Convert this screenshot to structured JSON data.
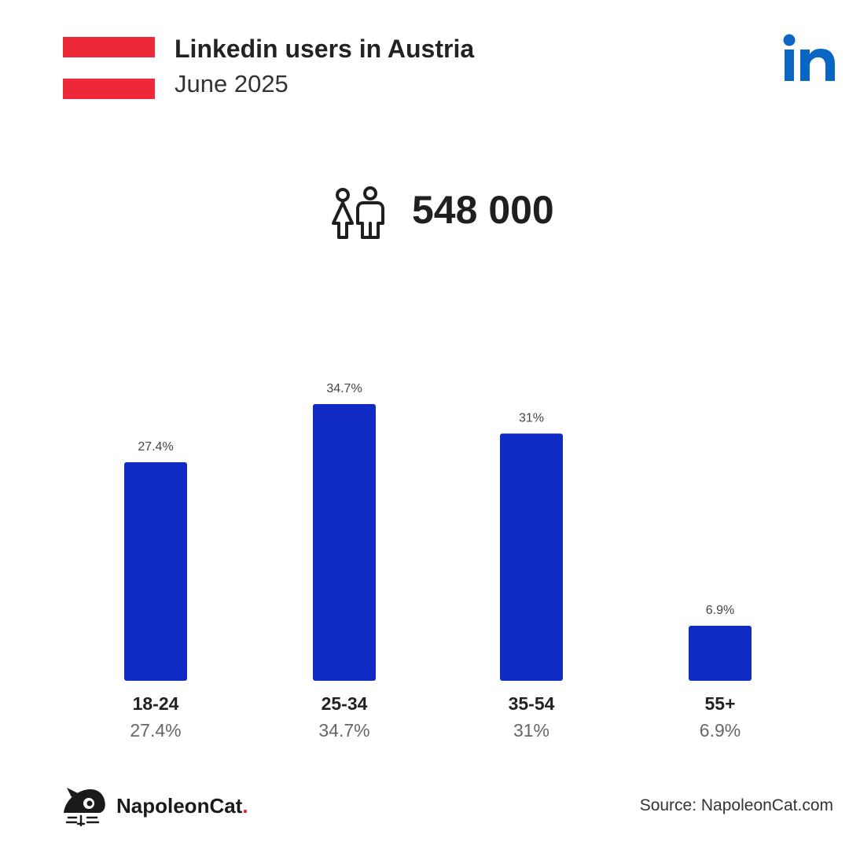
{
  "header": {
    "title": "Linkedin users in Austria",
    "subtitle": "June 2025"
  },
  "colors": {
    "flag_red": "#ed2939",
    "flag_white": "#ffffff",
    "linkedin_blue": "#0a66c2",
    "bar": "#102bc4"
  },
  "icons": {
    "flag": "austria-flag-icon",
    "logo": "linkedin-logo-icon",
    "users": "users-icon",
    "brand": "napoleoncat-logo-icon"
  },
  "total": {
    "value": "548 000"
  },
  "chart_data": {
    "type": "bar",
    "categories": [
      "18-24",
      "25-34",
      "35-54",
      "55+"
    ],
    "values": [
      27.4,
      34.7,
      31,
      6.9
    ],
    "data_labels": [
      "27.4%",
      "34.7%",
      "31%",
      "6.9%"
    ],
    "ylim": [
      0,
      34.7
    ],
    "grid": false
  },
  "footer": {
    "brand_name": "NapoleonCat",
    "brand_dot": ".",
    "source": "Source: NapoleonCat.com"
  }
}
